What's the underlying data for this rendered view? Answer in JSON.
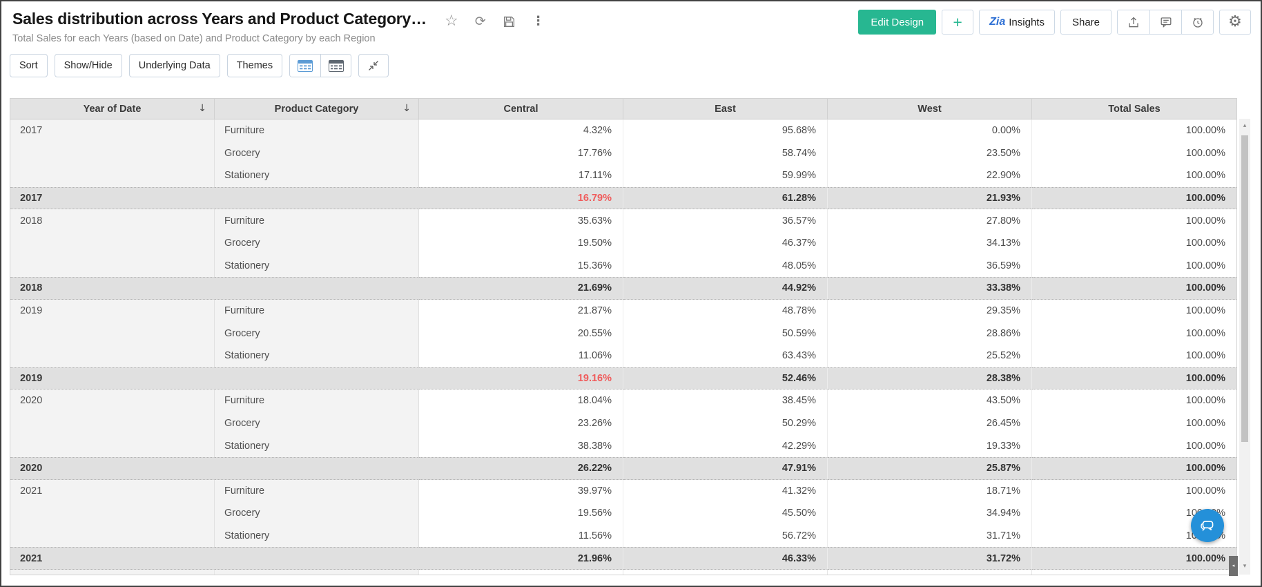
{
  "header": {
    "title": "Sales distribution across Years and Product Category…",
    "subtitle": "Total Sales for each Years (based on Date) and Product Category by each Region",
    "star_glyph": "☆",
    "refresh_glyph": "⟳",
    "more_glyph": "⋮",
    "gear_glyph": "⚙",
    "actions": {
      "edit_design": "Edit Design",
      "add": "+",
      "zia": "Zia",
      "insights": "Insights",
      "share": "Share"
    },
    "colors": {
      "primary_green": "#27b791",
      "zia_blue": "#2d6fd4"
    }
  },
  "toolbar": {
    "buttons": [
      "Sort",
      "Show/Hide",
      "Underlying Data",
      "Themes"
    ]
  },
  "table": {
    "columns": [
      "Year of Date",
      "Product Category",
      "Central",
      "East",
      "West",
      "Total Sales"
    ],
    "sort_glyph": "↓",
    "highlight_color": "#f05b5b",
    "groups": [
      {
        "year": "2017",
        "rows": [
          {
            "category": "Furniture",
            "values": [
              "4.32%",
              "95.68%",
              "0.00%",
              "100.00%"
            ]
          },
          {
            "category": "Grocery",
            "values": [
              "17.76%",
              "58.74%",
              "23.50%",
              "100.00%"
            ]
          },
          {
            "category": "Stationery",
            "values": [
              "17.11%",
              "59.99%",
              "22.90%",
              "100.00%"
            ]
          }
        ],
        "summary": {
          "values": [
            "16.79%",
            "61.28%",
            "21.93%",
            "100.00%"
          ],
          "highlight": [
            true,
            false,
            false,
            false
          ]
        }
      },
      {
        "year": "2018",
        "rows": [
          {
            "category": "Furniture",
            "values": [
              "35.63%",
              "36.57%",
              "27.80%",
              "100.00%"
            ]
          },
          {
            "category": "Grocery",
            "values": [
              "19.50%",
              "46.37%",
              "34.13%",
              "100.00%"
            ]
          },
          {
            "category": "Stationery",
            "values": [
              "15.36%",
              "48.05%",
              "36.59%",
              "100.00%"
            ]
          }
        ],
        "summary": {
          "values": [
            "21.69%",
            "44.92%",
            "33.38%",
            "100.00%"
          ],
          "highlight": [
            false,
            false,
            false,
            false
          ]
        }
      },
      {
        "year": "2019",
        "rows": [
          {
            "category": "Furniture",
            "values": [
              "21.87%",
              "48.78%",
              "29.35%",
              "100.00%"
            ]
          },
          {
            "category": "Grocery",
            "values": [
              "20.55%",
              "50.59%",
              "28.86%",
              "100.00%"
            ]
          },
          {
            "category": "Stationery",
            "values": [
              "11.06%",
              "63.43%",
              "25.52%",
              "100.00%"
            ]
          }
        ],
        "summary": {
          "values": [
            "19.16%",
            "52.46%",
            "28.38%",
            "100.00%"
          ],
          "highlight": [
            true,
            false,
            false,
            false
          ]
        }
      },
      {
        "year": "2020",
        "rows": [
          {
            "category": "Furniture",
            "values": [
              "18.04%",
              "38.45%",
              "43.50%",
              "100.00%"
            ]
          },
          {
            "category": "Grocery",
            "values": [
              "23.26%",
              "50.29%",
              "26.45%",
              "100.00%"
            ]
          },
          {
            "category": "Stationery",
            "values": [
              "38.38%",
              "42.29%",
              "19.33%",
              "100.00%"
            ]
          }
        ],
        "summary": {
          "values": [
            "26.22%",
            "47.91%",
            "25.87%",
            "100.00%"
          ],
          "highlight": [
            false,
            false,
            false,
            false
          ]
        }
      },
      {
        "year": "2021",
        "rows": [
          {
            "category": "Furniture",
            "values": [
              "39.97%",
              "41.32%",
              "18.71%",
              "100.00%"
            ]
          },
          {
            "category": "Grocery",
            "values": [
              "19.56%",
              "45.50%",
              "34.94%",
              "100.00%"
            ]
          },
          {
            "category": "Stationery",
            "values": [
              "11.56%",
              "56.72%",
              "31.71%",
              "100.00%"
            ]
          }
        ],
        "summary": {
          "values": [
            "21.96%",
            "46.33%",
            "31.72%",
            "100.00%"
          ],
          "highlight": [
            false,
            false,
            false,
            false
          ]
        }
      }
    ]
  },
  "scrollbar": {
    "up_glyph": "▴",
    "down_glyph": "▾",
    "left_glyph": "◂"
  }
}
